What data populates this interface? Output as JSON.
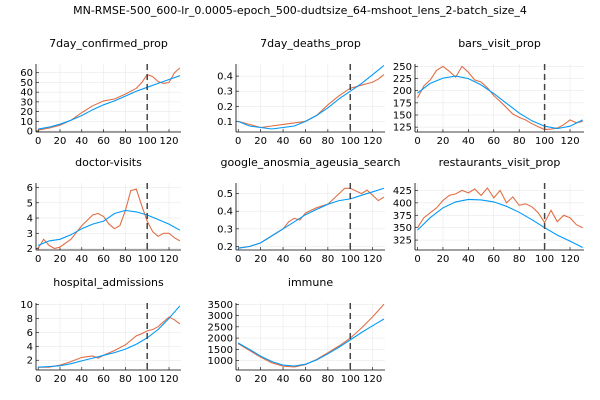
{
  "suptitle": "MN-RMSE-500_600-lr_0.0005-epoch_500-dudtsize_64-mshoot_lens_2-batch_size_4",
  "colors": {
    "actual": "#e26f46",
    "predicted": "#009af9",
    "vline": "#444444"
  },
  "chart_data": [
    {
      "type": "line",
      "title": "7day_confirmed_prop",
      "xlim": [
        -2,
        131
      ],
      "ylim": [
        -1,
        69
      ],
      "xticks": [
        0,
        20,
        40,
        60,
        80,
        100,
        120
      ],
      "yticks": [
        0,
        10,
        20,
        30,
        40,
        50,
        60
      ],
      "vline": 100,
      "series": [
        {
          "key": "actual",
          "x": [
            0,
            10,
            20,
            30,
            40,
            50,
            60,
            70,
            80,
            90,
            95,
            100,
            105,
            110,
            115,
            120,
            125,
            130
          ],
          "y": [
            1,
            3,
            6,
            11,
            19,
            26,
            31,
            33,
            38,
            44,
            50,
            58,
            56,
            51,
            49,
            50,
            60,
            65
          ]
        },
        {
          "key": "predicted",
          "x": [
            0,
            10,
            20,
            30,
            40,
            50,
            60,
            70,
            80,
            90,
            100,
            110,
            120,
            130
          ],
          "y": [
            2,
            4,
            7,
            11,
            16,
            22,
            27,
            31,
            36,
            41,
            45,
            49,
            53,
            57
          ]
        }
      ]
    },
    {
      "type": "line",
      "title": "7day_deaths_prop",
      "xlim": [
        -2,
        131
      ],
      "ylim": [
        0.03,
        0.48
      ],
      "xticks": [
        0,
        20,
        40,
        60,
        80,
        100,
        120
      ],
      "yticks": [
        0.1,
        0.2,
        0.3,
        0.4
      ],
      "vline": 100,
      "series": [
        {
          "key": "actual",
          "x": [
            0,
            10,
            20,
            30,
            40,
            50,
            60,
            70,
            80,
            90,
            100,
            110,
            115,
            120,
            125,
            130
          ],
          "y": [
            0.1,
            0.08,
            0.06,
            0.07,
            0.08,
            0.09,
            0.1,
            0.14,
            0.21,
            0.27,
            0.32,
            0.34,
            0.35,
            0.36,
            0.38,
            0.41
          ]
        },
        {
          "key": "predicted",
          "x": [
            0,
            10,
            20,
            30,
            40,
            50,
            60,
            70,
            80,
            90,
            100,
            110,
            120,
            130
          ],
          "y": [
            0.1,
            0.07,
            0.06,
            0.05,
            0.06,
            0.07,
            0.1,
            0.14,
            0.19,
            0.25,
            0.3,
            0.35,
            0.41,
            0.47
          ]
        }
      ]
    },
    {
      "type": "line",
      "title": "bars_visit_prop",
      "xlim": [
        -2,
        131
      ],
      "ylim": [
        115,
        255
      ],
      "xticks": [
        0,
        20,
        40,
        60,
        80,
        100,
        120
      ],
      "yticks": [
        125,
        150,
        175,
        200,
        225,
        250
      ],
      "vline": 100,
      "series": [
        {
          "key": "actual",
          "x": [
            0,
            5,
            10,
            15,
            20,
            25,
            30,
            35,
            40,
            45,
            50,
            55,
            60,
            65,
            70,
            75,
            80,
            85,
            90,
            95,
            100,
            105,
            110,
            115,
            120,
            125,
            130
          ],
          "y": [
            185,
            210,
            222,
            242,
            250,
            240,
            228,
            250,
            238,
            222,
            218,
            206,
            190,
            178,
            165,
            152,
            145,
            140,
            132,
            126,
            120,
            121,
            123,
            130,
            140,
            134,
            137
          ]
        },
        {
          "key": "predicted",
          "x": [
            0,
            10,
            20,
            30,
            40,
            50,
            60,
            70,
            80,
            90,
            100,
            110,
            120,
            130
          ],
          "y": [
            195,
            215,
            226,
            230,
            225,
            212,
            194,
            174,
            154,
            138,
            127,
            122,
            127,
            140
          ]
        }
      ]
    },
    {
      "type": "line",
      "title": "doctor-visits",
      "xlim": [
        -2,
        131
      ],
      "ylim": [
        1.9,
        6.3
      ],
      "xticks": [
        0,
        20,
        40,
        60,
        80,
        100,
        120
      ],
      "yticks": [
        2,
        3,
        4,
        5,
        6
      ],
      "vline": 100,
      "series": [
        {
          "key": "actual",
          "x": [
            0,
            5,
            10,
            15,
            20,
            30,
            40,
            50,
            55,
            60,
            65,
            70,
            75,
            80,
            85,
            90,
            95,
            100,
            105,
            110,
            115,
            120,
            125,
            130
          ],
          "y": [
            2.0,
            2.6,
            2.2,
            2.0,
            2.1,
            2.6,
            3.5,
            4.2,
            4.3,
            4.1,
            3.6,
            3.3,
            3.5,
            4.5,
            5.8,
            5.9,
            4.8,
            3.8,
            3.1,
            2.8,
            3.0,
            3.0,
            2.7,
            2.5
          ]
        },
        {
          "key": "predicted",
          "x": [
            0,
            10,
            20,
            30,
            40,
            50,
            60,
            70,
            80,
            90,
            100,
            110,
            120,
            130
          ],
          "y": [
            2.2,
            2.5,
            2.6,
            2.9,
            3.3,
            3.6,
            3.8,
            4.3,
            4.5,
            4.4,
            4.2,
            3.9,
            3.6,
            3.2
          ]
        }
      ]
    },
    {
      "type": "line",
      "title": "google_anosmia_ageusia_search",
      "xlim": [
        -2,
        131
      ],
      "ylim": [
        0.18,
        0.56
      ],
      "xticks": [
        0,
        20,
        40,
        60,
        80,
        100,
        120
      ],
      "yticks": [
        0.2,
        0.3,
        0.4,
        0.5
      ],
      "vline": 100,
      "series": [
        {
          "key": "actual",
          "x": [
            0,
            10,
            20,
            30,
            40,
            45,
            50,
            55,
            60,
            70,
            80,
            90,
            95,
            100,
            110,
            115,
            120,
            125,
            130
          ],
          "y": [
            0.19,
            0.2,
            0.22,
            0.26,
            0.3,
            0.34,
            0.36,
            0.35,
            0.39,
            0.42,
            0.44,
            0.5,
            0.53,
            0.53,
            0.5,
            0.52,
            0.49,
            0.46,
            0.48
          ]
        },
        {
          "key": "predicted",
          "x": [
            0,
            10,
            20,
            30,
            40,
            50,
            60,
            70,
            80,
            90,
            100,
            110,
            120,
            130
          ],
          "y": [
            0.19,
            0.2,
            0.22,
            0.26,
            0.3,
            0.34,
            0.38,
            0.41,
            0.44,
            0.46,
            0.47,
            0.49,
            0.51,
            0.53
          ]
        }
      ]
    },
    {
      "type": "line",
      "title": "restaurants_visit_prop",
      "xlim": [
        -2,
        131
      ],
      "ylim": [
        305,
        440
      ],
      "xticks": [
        0,
        20,
        40,
        60,
        80,
        100,
        120
      ],
      "yticks": [
        325,
        350,
        375,
        400,
        425
      ],
      "vline": 100,
      "series": [
        {
          "key": "actual",
          "x": [
            0,
            5,
            10,
            15,
            20,
            25,
            30,
            35,
            40,
            45,
            50,
            55,
            60,
            65,
            70,
            75,
            80,
            85,
            90,
            95,
            100,
            105,
            110,
            115,
            120,
            125,
            130
          ],
          "y": [
            350,
            370,
            380,
            390,
            405,
            415,
            418,
            425,
            420,
            428,
            415,
            430,
            410,
            425,
            400,
            412,
            395,
            398,
            392,
            380,
            360,
            385,
            362,
            375,
            370,
            356,
            350
          ]
        },
        {
          "key": "predicted",
          "x": [
            0,
            10,
            20,
            30,
            40,
            50,
            60,
            70,
            80,
            90,
            100,
            110,
            120,
            130
          ],
          "y": [
            345,
            370,
            390,
            402,
            407,
            406,
            402,
            393,
            381,
            366,
            350,
            335,
            323,
            310
          ]
        }
      ]
    },
    {
      "type": "line",
      "title": "hospital_admissions",
      "xlim": [
        -2,
        131
      ],
      "ylim": [
        0.6,
        10.2
      ],
      "xticks": [
        0,
        20,
        40,
        60,
        80,
        100,
        120
      ],
      "yticks": [
        2,
        4,
        6,
        8,
        10
      ],
      "vline": 100,
      "series": [
        {
          "key": "actual",
          "x": [
            0,
            10,
            20,
            30,
            40,
            50,
            55,
            60,
            70,
            80,
            90,
            95,
            100,
            105,
            110,
            115,
            120,
            125,
            130
          ],
          "y": [
            1.0,
            1.0,
            1.3,
            1.8,
            2.4,
            2.6,
            2.3,
            2.7,
            3.4,
            4.2,
            5.5,
            5.8,
            6.2,
            6.4,
            6.8,
            7.5,
            8.2,
            7.8,
            7.2
          ]
        },
        {
          "key": "predicted",
          "x": [
            0,
            10,
            20,
            30,
            40,
            50,
            60,
            70,
            80,
            90,
            100,
            110,
            120,
            130
          ],
          "y": [
            1.0,
            1.1,
            1.2,
            1.5,
            1.9,
            2.3,
            2.7,
            3.1,
            3.6,
            4.3,
            5.2,
            6.4,
            8.0,
            9.8
          ]
        }
      ]
    },
    {
      "type": "line",
      "title": "immune",
      "xlim": [
        -2,
        131
      ],
      "ylim": [
        580,
        3560
      ],
      "xticks": [
        0,
        20,
        40,
        60,
        80,
        100,
        120
      ],
      "yticks": [
        1000,
        1500,
        2000,
        2500,
        3000,
        3500
      ],
      "vline": 100,
      "series": [
        {
          "key": "actual",
          "x": [
            0,
            10,
            20,
            30,
            40,
            50,
            60,
            70,
            80,
            90,
            100,
            110,
            120,
            130
          ],
          "y": [
            1750,
            1450,
            1150,
            900,
            750,
            720,
            820,
            1050,
            1350,
            1650,
            2000,
            2450,
            2950,
            3500
          ]
        },
        {
          "key": "predicted",
          "x": [
            0,
            10,
            20,
            30,
            40,
            50,
            60,
            70,
            80,
            90,
            100,
            110,
            120,
            130
          ],
          "y": [
            1780,
            1500,
            1200,
            960,
            800,
            760,
            840,
            1030,
            1300,
            1600,
            1920,
            2250,
            2550,
            2850
          ]
        }
      ]
    }
  ]
}
